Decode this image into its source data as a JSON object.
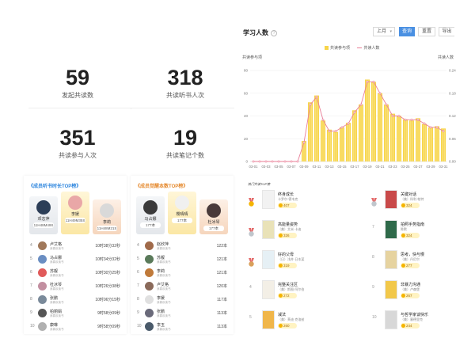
{
  "stats": [
    {
      "value": "59",
      "label": "发起共读数"
    },
    {
      "value": "318",
      "label": "共读听书人次"
    },
    {
      "value": "351",
      "label": "共读参与人次"
    },
    {
      "value": "19",
      "label": "共读笔记个数"
    }
  ],
  "chart_panel": {
    "title": "学习人数",
    "period": "上月",
    "buttons": {
      "query": "查询",
      "reset": "重置",
      "export": "导出"
    }
  },
  "chart_data": {
    "type": "bar",
    "legend": [
      "共读参与项",
      "共读人数"
    ],
    "ylabel": "共读参与项",
    "y2label": "共读人数",
    "ylim": [
      0,
      80
    ],
    "y2lim": [
      0,
      0.24
    ],
    "yticks": [
      "0",
      "20",
      "40",
      "60",
      "80"
    ],
    "y2ticks": [
      "0.00",
      "0.06",
      "0.12",
      "0.18",
      "0.24"
    ],
    "categories": [
      "03-01",
      "03-02",
      "03-03",
      "03-04",
      "03-05",
      "03-06",
      "03-07",
      "03-08",
      "03-09",
      "03-10",
      "03-11",
      "03-12",
      "03-13",
      "03-14",
      "03-15",
      "03-16",
      "03-17",
      "03-18",
      "03-19",
      "03-20",
      "03-21",
      "03-22",
      "03-23",
      "03-24",
      "03-25",
      "03-26",
      "03-27",
      "03-28",
      "03-29",
      "03-30",
      "03-31"
    ],
    "xtick_labels": [
      "03-01",
      "03-03",
      "03-05",
      "03-07",
      "03-09",
      "03-11",
      "03-13",
      "03-15",
      "03-17",
      "03-19",
      "03-21",
      "03-23",
      "03-25",
      "03-27",
      "03-29",
      "03-31"
    ],
    "series": [
      {
        "name": "共读参与项",
        "values": [
          0,
          0,
          0,
          0,
          0,
          0,
          0,
          0,
          18,
          52,
          58,
          36,
          28,
          26,
          30,
          34,
          45,
          50,
          72,
          70,
          60,
          50,
          42,
          40,
          37,
          36,
          38,
          33,
          30,
          31,
          29
        ]
      },
      {
        "name": "共读人数",
        "values": [
          0,
          0,
          0,
          0,
          0,
          0,
          0,
          0,
          0.05,
          0.15,
          0.17,
          0.11,
          0.08,
          0.08,
          0.09,
          0.1,
          0.13,
          0.15,
          0.21,
          0.21,
          0.18,
          0.15,
          0.12,
          0.12,
          0.11,
          0.11,
          0.11,
          0.1,
          0.09,
          0.09,
          0.08
        ]
      }
    ],
    "colors": {
      "bar": "#f7d54a",
      "line": "#e97d96"
    }
  },
  "ranks": [
    {
      "title": "成员听书时长TOP榜",
      "podium": [
        {
          "name": "李媛",
          "value": "11H49M35S",
          "color": "#e9a7a7"
        },
        {
          "name": "邓志萍",
          "value": "11H48M49S",
          "color": "#2c3e57"
        },
        {
          "name": "李莉",
          "value": "11H48M21S",
          "color": "#d9d9d9"
        }
      ],
      "rows": [
        {
          "idx": "4",
          "name": "卢艾格",
          "sub": "我喜欢读书",
          "value": "10时38分32秒",
          "color": "#a0785a"
        },
        {
          "idx": "5",
          "name": "马占娜",
          "sub": "我喜欢读书",
          "value": "10时34分32秒",
          "color": "#6a8ec2"
        },
        {
          "idx": "6",
          "name": "苏靓",
          "sub": "我喜欢读书",
          "value": "10时30分25秒",
          "color": "#e05a5a"
        },
        {
          "idx": "7",
          "name": "杜冰琴",
          "sub": "我喜欢读书",
          "value": "10时26分38秒",
          "color": "#c28fa0"
        },
        {
          "idx": "8",
          "name": "张鹏",
          "sub": "我喜欢读书",
          "value": "10时06分15秒",
          "color": "#7a8a9a"
        },
        {
          "idx": "9",
          "name": "柏丽娟",
          "sub": "我喜欢读书",
          "value": "9时58分09秒",
          "color": "#555"
        },
        {
          "idx": "10",
          "name": "康琳",
          "sub": "我喜欢读书",
          "value": "9时58分09秒",
          "color": "#b0b0b0"
        }
      ]
    },
    {
      "title": "成员觉醒本数TOP榜",
      "podium": [
        {
          "name": "樱晴晴",
          "value": "177本",
          "color": "#f0f0f0"
        },
        {
          "name": "马占娜",
          "value": "177本",
          "color": "#3a3a3a"
        },
        {
          "name": "杜冰琴",
          "value": "177本",
          "color": "#4a3a3a"
        }
      ],
      "rows": [
        {
          "idx": "4",
          "name": "赵欣萍",
          "sub": "我喜欢读书",
          "value": "122本",
          "color": "#a06a4a"
        },
        {
          "idx": "5",
          "name": "苏靓",
          "sub": "我喜欢读书",
          "value": "121本",
          "color": "#5a7a5a"
        },
        {
          "idx": "6",
          "name": "李莉",
          "sub": "我喜欢读书",
          "value": "121本",
          "color": "#c07a3a"
        },
        {
          "idx": "7",
          "name": "卢艾格",
          "sub": "我喜欢读书",
          "value": "120本",
          "color": "#8a6a5a"
        },
        {
          "idx": "8",
          "name": "李媛",
          "sub": "我喜欢读书",
          "value": "117本",
          "color": "#e0e0e0"
        },
        {
          "idx": "9",
          "name": "张鹏",
          "sub": "我喜欢读书",
          "value": "113本",
          "color": "#6a6a7a"
        },
        {
          "idx": "10",
          "name": "李玉",
          "sub": "我喜欢读书",
          "value": "113本",
          "color": "#4a5a6a"
        }
      ]
    }
  ],
  "books": {
    "title": "热门共读TOP榜",
    "left": [
      {
        "rank": "1",
        "title": "终身成长",
        "author": "卡罗尔·德韦克",
        "count": "407",
        "cover": "#f2f2f2",
        "medal": "#f5b400"
      },
      {
        "rank": "2",
        "title": "高能量姿势",
        "author": "（美）艾米·卡迪",
        "count": "326",
        "cover": "#e9e2b8",
        "medal": "#c0c6cc"
      },
      {
        "rank": "3",
        "title": "好的父母",
        "author": "（日）浅井·日本某",
        "count": "319",
        "cover": "#e6f0f5",
        "medal": "#d9a05b"
      },
      {
        "rank": "4",
        "title": "完整关注区",
        "author": "（美）斯图·阿尔伯",
        "count": "272",
        "cover": "#f3efe6",
        "medal": ""
      },
      {
        "rank": "5",
        "title": "减法",
        "author": "（美）莱迪·克洛兹",
        "count": "260",
        "cover": "#f0b64a",
        "medal": ""
      }
    ],
    "right": [
      {
        "rank": "6",
        "title": "关键对话",
        "author": "（美）科利·帕特",
        "count": "324",
        "cover": "#c94a4a",
        "medal": "#c0c6cc"
      },
      {
        "rank": "7",
        "title": "拍照手势指南",
        "author": "陈默",
        "count": "324",
        "cover": "#2f6a4a",
        "medal": ""
      },
      {
        "rank": "8",
        "title": "思考，快与慢",
        "author": "（美）丹尼尔",
        "count": "277",
        "cover": "#e6d3a0",
        "medal": ""
      },
      {
        "rank": "9",
        "title": "非暴力沟通",
        "author": "（美）卢森堡",
        "count": "267",
        "cover": "#f2c84a",
        "medal": ""
      },
      {
        "rank": "10",
        "title": "与哲学家谈快乐",
        "author": "（美）塞德里克",
        "count": "244",
        "cover": "#d8d8d8",
        "medal": ""
      }
    ]
  }
}
